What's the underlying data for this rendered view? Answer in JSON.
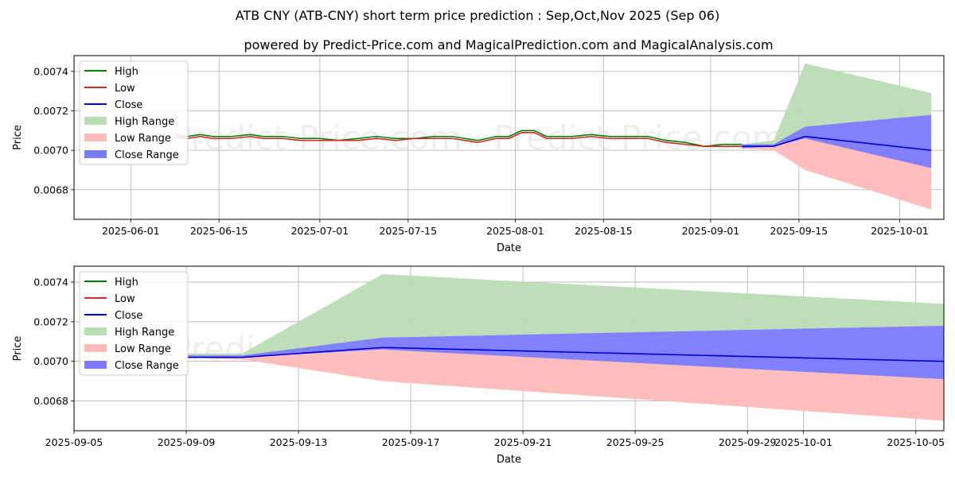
{
  "title": "ATB CNY (ATB-CNY) short term price prediction : Sep,Oct,Nov 2025 (Sep 06)",
  "subtitle": "powered by Predict-Price.com and MagicalPrediction.com and MagicalAnalysis.com",
  "watermark": "Predict-Price.com",
  "colors": {
    "high": "#008000",
    "low": "#d62728",
    "close": "#0000cc",
    "high_range": "#b9dcb4",
    "low_range": "#ffbaba",
    "close_range": "#7b7bff",
    "grid": "#b0b0b0"
  },
  "chart_data": [
    {
      "type": "line",
      "panel": "top",
      "xlabel": "Date",
      "ylabel": "Price",
      "x_axis": "date",
      "xlim": [
        "2025-05-23",
        "2025-10-08"
      ],
      "ylim": [
        0.00665,
        0.00748
      ],
      "xticks": [
        "2025-06-01",
        "2025-06-15",
        "2025-07-01",
        "2025-07-15",
        "2025-08-01",
        "2025-08-15",
        "2025-09-01",
        "2025-09-15",
        "2025-10-01"
      ],
      "xtick_labels": [
        "2025-06-01",
        "2025-06-15",
        "2025-07-01",
        "2025-07-15",
        "2025-08-01",
        "2025-08-15",
        "2025-09-01",
        "2025-09-15",
        "2025-10-01"
      ],
      "yticks": [
        0.0068,
        0.007,
        0.0072,
        0.0074
      ],
      "ytick_labels": [
        "0.0068",
        "0.0070",
        "0.0072",
        "0.0074"
      ],
      "grid": true,
      "legend_position": "top-left",
      "legend": [
        "High",
        "Low",
        "Close",
        "High Range",
        "Low Range",
        "Close Range"
      ],
      "series": [
        {
          "name": "High",
          "kind": "line",
          "color_key": "high",
          "x": [
            "2025-06-08",
            "2025-06-10",
            "2025-06-12",
            "2025-06-14",
            "2025-06-17",
            "2025-06-20",
            "2025-06-22",
            "2025-06-25",
            "2025-06-28",
            "2025-07-01",
            "2025-07-04",
            "2025-07-07",
            "2025-07-10",
            "2025-07-13",
            "2025-07-16",
            "2025-07-19",
            "2025-07-22",
            "2025-07-24",
            "2025-07-26",
            "2025-07-29",
            "2025-07-31",
            "2025-08-02",
            "2025-08-04",
            "2025-08-06",
            "2025-08-10",
            "2025-08-13",
            "2025-08-16",
            "2025-08-19",
            "2025-08-22",
            "2025-08-25",
            "2025-08-28",
            "2025-08-31",
            "2025-09-03",
            "2025-09-06"
          ],
          "y": [
            0.00708,
            0.00707,
            0.00708,
            0.00707,
            0.00707,
            0.00708,
            0.00707,
            0.00707,
            0.00706,
            0.00706,
            0.00705,
            0.00706,
            0.00707,
            0.00706,
            0.00706,
            0.00707,
            0.00707,
            0.00706,
            0.00705,
            0.00707,
            0.00707,
            0.0071,
            0.0071,
            0.00707,
            0.00707,
            0.00708,
            0.00707,
            0.00707,
            0.00707,
            0.00705,
            0.00704,
            0.00702,
            0.00703,
            0.00703
          ]
        },
        {
          "name": "Low",
          "kind": "line",
          "color_key": "low",
          "x": [
            "2025-06-08",
            "2025-06-10",
            "2025-06-12",
            "2025-06-14",
            "2025-06-17",
            "2025-06-20",
            "2025-06-22",
            "2025-06-25",
            "2025-06-28",
            "2025-07-01",
            "2025-07-04",
            "2025-07-07",
            "2025-07-10",
            "2025-07-13",
            "2025-07-16",
            "2025-07-19",
            "2025-07-22",
            "2025-07-24",
            "2025-07-26",
            "2025-07-29",
            "2025-07-31",
            "2025-08-02",
            "2025-08-04",
            "2025-08-06",
            "2025-08-10",
            "2025-08-13",
            "2025-08-16",
            "2025-08-19",
            "2025-08-22",
            "2025-08-25",
            "2025-08-28",
            "2025-08-31",
            "2025-09-03",
            "2025-09-06"
          ],
          "y": [
            0.00707,
            0.00706,
            0.00707,
            0.00706,
            0.00706,
            0.00707,
            0.00706,
            0.00706,
            0.00705,
            0.00705,
            0.00705,
            0.00705,
            0.00706,
            0.00705,
            0.00706,
            0.00706,
            0.00706,
            0.00705,
            0.00704,
            0.00706,
            0.00706,
            0.00709,
            0.00709,
            0.00706,
            0.00706,
            0.00707,
            0.00706,
            0.00706,
            0.00706,
            0.00704,
            0.00703,
            0.00702,
            0.00702,
            0.00702
          ]
        },
        {
          "name": "Close",
          "kind": "line",
          "color_key": "close",
          "x": [
            "2025-09-06",
            "2025-09-11",
            "2025-09-16",
            "2025-10-06"
          ],
          "y": [
            0.00702,
            0.00702,
            0.00707,
            0.007
          ]
        },
        {
          "name": "High Range",
          "kind": "band",
          "color_key": "high_range",
          "x": [
            "2025-09-06",
            "2025-09-11",
            "2025-09-16",
            "2025-10-06"
          ],
          "upper": [
            0.00703,
            0.00705,
            0.00744,
            0.00729
          ],
          "lower": [
            0.00701,
            0.00701,
            0.00712,
            0.00718
          ]
        },
        {
          "name": "Low Range",
          "kind": "band",
          "color_key": "low_range",
          "x": [
            "2025-09-06",
            "2025-09-11",
            "2025-09-16",
            "2025-10-06"
          ],
          "upper": [
            0.00703,
            0.00703,
            0.00708,
            0.00702
          ],
          "lower": [
            0.00701,
            0.007,
            0.0069,
            0.0067
          ]
        },
        {
          "name": "Close Range",
          "kind": "band",
          "color_key": "close_range",
          "x": [
            "2025-09-06",
            "2025-09-11",
            "2025-09-16",
            "2025-10-06"
          ],
          "upper": [
            0.00703,
            0.00703,
            0.00712,
            0.00718
          ],
          "lower": [
            0.00701,
            0.00702,
            0.00706,
            0.00691
          ]
        }
      ]
    },
    {
      "type": "line",
      "panel": "bottom",
      "xlabel": "Date",
      "ylabel": "Price",
      "x_axis": "date",
      "xlim": [
        "2025-09-05",
        "2025-10-06"
      ],
      "ylim": [
        0.00665,
        0.00748
      ],
      "xticks": [
        "2025-09-05",
        "2025-09-09",
        "2025-09-13",
        "2025-09-17",
        "2025-09-21",
        "2025-09-25",
        "2025-09-29",
        "2025-10-01",
        "2025-10-05"
      ],
      "xtick_labels": [
        "2025-09-05",
        "2025-09-09",
        "2025-09-13",
        "2025-09-17",
        "2025-09-21",
        "2025-09-25",
        "2025-09-29",
        "2025-10-01",
        "2025-10-05"
      ],
      "yticks": [
        0.0068,
        0.007,
        0.0072,
        0.0074
      ],
      "ytick_labels": [
        "0.0068",
        "0.0070",
        "0.0072",
        "0.0074"
      ],
      "grid": true,
      "legend_position": "top-left",
      "legend": [
        "High",
        "Low",
        "Close",
        "High Range",
        "Low Range",
        "Close Range"
      ],
      "series": [
        {
          "name": "Close",
          "kind": "line",
          "color_key": "close",
          "x": [
            "2025-09-09",
            "2025-09-11",
            "2025-09-16",
            "2025-10-06"
          ],
          "y": [
            0.00702,
            0.00702,
            0.00707,
            0.007
          ]
        },
        {
          "name": "High Range",
          "kind": "band",
          "color_key": "high_range",
          "x": [
            "2025-09-09",
            "2025-09-11",
            "2025-09-16",
            "2025-10-06"
          ],
          "upper": [
            0.00704,
            0.00704,
            0.00744,
            0.00729
          ],
          "lower": [
            0.00702,
            0.00702,
            0.00712,
            0.00718
          ]
        },
        {
          "name": "Low Range",
          "kind": "band",
          "color_key": "low_range",
          "x": [
            "2025-09-09",
            "2025-09-11",
            "2025-09-16",
            "2025-10-06"
          ],
          "upper": [
            0.00703,
            0.00703,
            0.00708,
            0.00702
          ],
          "lower": [
            0.00702,
            0.00701,
            0.0069,
            0.0067
          ]
        },
        {
          "name": "Close Range",
          "kind": "band",
          "color_key": "close_range",
          "x": [
            "2025-09-09",
            "2025-09-11",
            "2025-09-16",
            "2025-10-06"
          ],
          "upper": [
            0.00703,
            0.00703,
            0.00712,
            0.00718
          ],
          "lower": [
            0.00702,
            0.00702,
            0.00706,
            0.00691
          ]
        }
      ]
    }
  ]
}
